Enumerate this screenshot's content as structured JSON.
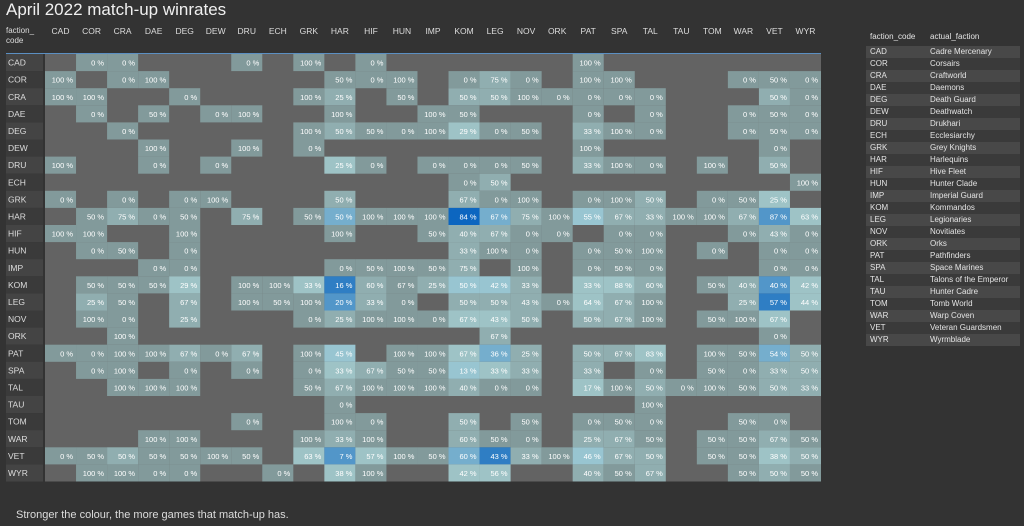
{
  "page": {
    "title": "April 2022 match-up winrates",
    "note": "Stronger the colour, the more games that match-up has."
  },
  "colors": {
    "background": "#333333",
    "empty_cell": "#636363",
    "scale_low": "#748585",
    "scale_mid": "#a6cfd3",
    "scale_high": "#0c66c0",
    "text": "#e4e4e4"
  },
  "chart_data": {
    "type": "heatmap",
    "title": "April 2022 match-up winrates",
    "corner_label": [
      "faction_",
      "code"
    ],
    "columns": [
      "CAD",
      "COR",
      "CRA",
      "DAE",
      "DEG",
      "DEW",
      "DRU",
      "ECH",
      "GRK",
      "HAR",
      "HIF",
      "HUN",
      "IMP",
      "KOM",
      "LEG",
      "NOV",
      "ORK",
      "PAT",
      "SPA",
      "TAL",
      "TAU",
      "TOM",
      "WAR",
      "VET",
      "WYR"
    ],
    "rows": [
      "CAD",
      "COR",
      "CRA",
      "DAE",
      "DEG",
      "DEW",
      "DRU",
      "ECH",
      "GRK",
      "HAR",
      "HIF",
      "HUN",
      "IMP",
      "KOM",
      "LEG",
      "NOV",
      "ORK",
      "PAT",
      "SPA",
      "TAL",
      "TAU",
      "TOM",
      "WAR",
      "VET",
      "WYR"
    ],
    "value_unit": "%",
    "values": [
      [
        null,
        0,
        0,
        null,
        null,
        null,
        0,
        null,
        100,
        null,
        0,
        null,
        null,
        null,
        null,
        null,
        null,
        100,
        null,
        null,
        null,
        null,
        null,
        null,
        null
      ],
      [
        100,
        null,
        0,
        100,
        null,
        null,
        null,
        null,
        null,
        50,
        0,
        100,
        null,
        0,
        75,
        0,
        null,
        100,
        100,
        null,
        null,
        null,
        0,
        50,
        0
      ],
      [
        100,
        100,
        null,
        null,
        0,
        null,
        null,
        null,
        100,
        25,
        null,
        50,
        null,
        50,
        50,
        100,
        0,
        0,
        0,
        0,
        null,
        null,
        null,
        50,
        0
      ],
      [
        null,
        0,
        null,
        50,
        null,
        0,
        100,
        null,
        null,
        100,
        null,
        null,
        100,
        50,
        null,
        null,
        null,
        0,
        null,
        0,
        null,
        null,
        0,
        50,
        0
      ],
      [
        null,
        null,
        0,
        null,
        null,
        null,
        null,
        null,
        100,
        50,
        50,
        0,
        100,
        29,
        0,
        50,
        null,
        33,
        100,
        0,
        null,
        null,
        0,
        50,
        0
      ],
      [
        null,
        null,
        null,
        100,
        null,
        null,
        100,
        null,
        0,
        null,
        null,
        null,
        null,
        null,
        null,
        null,
        null,
        100,
        null,
        null,
        null,
        null,
        null,
        0,
        null
      ],
      [
        100,
        null,
        null,
        0,
        null,
        0,
        null,
        null,
        null,
        25,
        0,
        null,
        0,
        0,
        0,
        50,
        null,
        33,
        100,
        0,
        null,
        100,
        null,
        50,
        null
      ],
      [
        null,
        null,
        null,
        null,
        null,
        null,
        null,
        null,
        null,
        null,
        null,
        null,
        null,
        0,
        50,
        null,
        null,
        null,
        null,
        null,
        null,
        null,
        null,
        null,
        100
      ],
      [
        0,
        null,
        0,
        null,
        0,
        100,
        null,
        null,
        null,
        50,
        null,
        null,
        null,
        67,
        0,
        100,
        null,
        0,
        100,
        50,
        null,
        0,
        50,
        25,
        null
      ],
      [
        null,
        50,
        75,
        0,
        50,
        null,
        75,
        null,
        50,
        50,
        100,
        100,
        100,
        84,
        67,
        75,
        100,
        55,
        67,
        33,
        100,
        100,
        67,
        87,
        63
      ],
      [
        100,
        100,
        null,
        null,
        100,
        null,
        null,
        null,
        null,
        100,
        null,
        null,
        50,
        40,
        67,
        0,
        0,
        null,
        0,
        0,
        null,
        null,
        0,
        43,
        0
      ],
      [
        null,
        0,
        50,
        null,
        0,
        null,
        null,
        null,
        null,
        null,
        null,
        null,
        null,
        33,
        100,
        0,
        null,
        0,
        50,
        100,
        null,
        0,
        null,
        0,
        0
      ],
      [
        null,
        null,
        null,
        0,
        0,
        null,
        null,
        null,
        null,
        0,
        50,
        100,
        50,
        75,
        null,
        100,
        null,
        0,
        50,
        0,
        null,
        null,
        null,
        0,
        0
      ],
      [
        null,
        50,
        50,
        50,
        29,
        null,
        100,
        100,
        33,
        16,
        60,
        67,
        25,
        50,
        42,
        33,
        null,
        33,
        88,
        60,
        null,
        50,
        40,
        40,
        42
      ],
      [
        null,
        25,
        50,
        null,
        67,
        null,
        100,
        50,
        100,
        20,
        33,
        0,
        null,
        50,
        50,
        43,
        0,
        64,
        67,
        100,
        null,
        null,
        25,
        57,
        44
      ],
      [
        null,
        100,
        0,
        null,
        25,
        null,
        null,
        null,
        0,
        25,
        100,
        100,
        0,
        67,
        43,
        50,
        null,
        50,
        67,
        100,
        null,
        50,
        100,
        67,
        null
      ],
      [
        null,
        null,
        100,
        null,
        null,
        null,
        null,
        null,
        null,
        null,
        null,
        null,
        null,
        null,
        67,
        null,
        null,
        null,
        null,
        null,
        null,
        null,
        null,
        0,
        null
      ],
      [
        0,
        0,
        100,
        100,
        67,
        0,
        67,
        null,
        100,
        45,
        null,
        100,
        100,
        67,
        36,
        25,
        null,
        50,
        67,
        83,
        null,
        100,
        50,
        54,
        50
      ],
      [
        null,
        0,
        100,
        null,
        0,
        null,
        0,
        null,
        0,
        33,
        67,
        50,
        50,
        13,
        33,
        33,
        null,
        33,
        null,
        0,
        null,
        50,
        0,
        33,
        50
      ],
      [
        null,
        null,
        100,
        100,
        100,
        null,
        null,
        null,
        50,
        67,
        100,
        100,
        100,
        40,
        0,
        0,
        null,
        17,
        100,
        50,
        0,
        100,
        50,
        50,
        33
      ],
      [
        null,
        null,
        null,
        null,
        null,
        null,
        null,
        null,
        null,
        0,
        null,
        null,
        null,
        null,
        null,
        null,
        null,
        null,
        null,
        100,
        null,
        null,
        null,
        null,
        null
      ],
      [
        null,
        null,
        null,
        null,
        null,
        null,
        0,
        null,
        null,
        100,
        0,
        null,
        null,
        50,
        null,
        50,
        null,
        0,
        50,
        0,
        null,
        null,
        50,
        0,
        null
      ],
      [
        null,
        null,
        null,
        100,
        100,
        null,
        null,
        null,
        100,
        33,
        100,
        null,
        null,
        60,
        50,
        0,
        null,
        25,
        67,
        50,
        null,
        50,
        50,
        67,
        50
      ],
      [
        0,
        50,
        50,
        50,
        50,
        100,
        50,
        null,
        63,
        7,
        57,
        100,
        50,
        60,
        43,
        33,
        100,
        46,
        67,
        50,
        null,
        50,
        50,
        38,
        50
      ],
      [
        null,
        100,
        100,
        0,
        0,
        null,
        null,
        0,
        null,
        38,
        100,
        null,
        null,
        42,
        56,
        null,
        null,
        40,
        50,
        67,
        null,
        null,
        50,
        50,
        50
      ]
    ],
    "weights": [
      [
        0,
        1,
        1,
        0,
        0,
        0,
        1,
        0,
        1,
        0,
        1,
        0,
        0,
        0,
        0,
        0,
        0,
        1,
        0,
        0,
        0,
        0,
        0,
        0,
        0
      ],
      [
        1,
        0,
        1,
        1,
        0,
        0,
        0,
        0,
        0,
        1,
        1,
        1,
        0,
        1,
        2,
        1,
        0,
        1,
        1,
        0,
        0,
        0,
        1,
        1,
        1
      ],
      [
        1,
        1,
        0,
        0,
        1,
        0,
        0,
        0,
        1,
        2,
        0,
        1,
        0,
        2,
        2,
        1,
        1,
        1,
        1,
        1,
        0,
        0,
        0,
        2,
        1
      ],
      [
        0,
        1,
        0,
        1,
        0,
        1,
        1,
        0,
        0,
        1,
        0,
        0,
        1,
        1,
        0,
        0,
        0,
        1,
        0,
        1,
        0,
        0,
        1,
        1,
        1
      ],
      [
        0,
        0,
        1,
        0,
        0,
        0,
        0,
        0,
        1,
        2,
        1,
        1,
        1,
        3,
        1,
        1,
        0,
        2,
        1,
        1,
        0,
        0,
        1,
        1,
        1
      ],
      [
        0,
        0,
        0,
        1,
        0,
        0,
        1,
        0,
        1,
        0,
        0,
        0,
        0,
        0,
        0,
        0,
        0,
        1,
        0,
        0,
        0,
        0,
        0,
        1,
        0
      ],
      [
        1,
        0,
        0,
        1,
        0,
        1,
        0,
        0,
        0,
        3,
        1,
        0,
        1,
        1,
        1,
        1,
        0,
        2,
        1,
        1,
        0,
        1,
        0,
        2,
        0
      ],
      [
        0,
        0,
        0,
        0,
        0,
        0,
        0,
        0,
        0,
        0,
        0,
        0,
        0,
        1,
        2,
        0,
        0,
        0,
        0,
        0,
        0,
        0,
        0,
        0,
        1
      ],
      [
        1,
        0,
        1,
        0,
        1,
        1,
        0,
        0,
        0,
        2,
        0,
        0,
        0,
        2,
        1,
        1,
        0,
        1,
        1,
        2,
        0,
        1,
        1,
        3,
        0
      ],
      [
        0,
        1,
        2,
        1,
        1,
        0,
        2,
        0,
        1,
        5,
        1,
        1,
        1,
        8,
        5,
        2,
        1,
        4,
        2,
        2,
        1,
        1,
        2,
        6,
        3
      ],
      [
        1,
        1,
        0,
        0,
        1,
        0,
        0,
        0,
        0,
        1,
        0,
        0,
        1,
        2,
        2,
        1,
        1,
        0,
        1,
        1,
        0,
        0,
        1,
        2,
        1
      ],
      [
        0,
        1,
        1,
        0,
        1,
        0,
        0,
        0,
        0,
        0,
        0,
        0,
        0,
        2,
        1,
        1,
        0,
        1,
        1,
        1,
        0,
        1,
        0,
        1,
        1
      ],
      [
        0,
        0,
        0,
        1,
        1,
        0,
        0,
        0,
        0,
        1,
        1,
        1,
        1,
        2,
        0,
        1,
        0,
        1,
        1,
        1,
        0,
        0,
        0,
        1,
        1
      ],
      [
        0,
        1,
        1,
        1,
        3,
        0,
        1,
        1,
        3,
        7,
        2,
        1,
        2,
        4,
        4,
        2,
        0,
        3,
        3,
        2,
        0,
        1,
        2,
        6,
        3
      ],
      [
        0,
        2,
        1,
        0,
        2,
        0,
        1,
        1,
        1,
        6,
        2,
        1,
        0,
        2,
        2,
        2,
        1,
        3,
        2,
        1,
        0,
        0,
        2,
        7,
        3
      ],
      [
        0,
        1,
        1,
        0,
        2,
        0,
        0,
        0,
        1,
        2,
        1,
        1,
        1,
        3,
        3,
        2,
        0,
        2,
        2,
        1,
        0,
        1,
        1,
        3,
        0
      ],
      [
        0,
        0,
        1,
        0,
        0,
        0,
        0,
        0,
        0,
        0,
        0,
        0,
        0,
        0,
        2,
        0,
        0,
        0,
        0,
        0,
        0,
        0,
        0,
        1,
        0
      ],
      [
        1,
        1,
        1,
        1,
        2,
        1,
        2,
        0,
        1,
        4,
        0,
        1,
        1,
        3,
        5,
        2,
        0,
        2,
        2,
        3,
        0,
        1,
        1,
        5,
        2
      ],
      [
        0,
        1,
        1,
        0,
        1,
        0,
        1,
        0,
        1,
        3,
        2,
        1,
        1,
        4,
        3,
        2,
        0,
        2,
        0,
        1,
        0,
        1,
        1,
        2,
        2
      ],
      [
        0,
        0,
        1,
        1,
        1,
        0,
        0,
        0,
        1,
        2,
        1,
        1,
        1,
        2,
        1,
        1,
        0,
        3,
        1,
        2,
        1,
        1,
        1,
        2,
        2
      ],
      [
        0,
        0,
        0,
        0,
        0,
        0,
        0,
        0,
        0,
        1,
        0,
        0,
        0,
        0,
        0,
        0,
        0,
        0,
        0,
        1,
        0,
        0,
        0,
        0,
        0
      ],
      [
        0,
        0,
        0,
        0,
        0,
        0,
        1,
        0,
        0,
        1,
        1,
        0,
        0,
        2,
        0,
        1,
        0,
        1,
        1,
        1,
        0,
        0,
        1,
        1,
        0
      ],
      [
        0,
        0,
        0,
        1,
        1,
        0,
        0,
        0,
        1,
        2,
        1,
        0,
        0,
        2,
        1,
        1,
        0,
        2,
        2,
        1,
        0,
        1,
        1,
        2,
        1
      ],
      [
        1,
        1,
        2,
        1,
        1,
        1,
        1,
        0,
        3,
        6,
        3,
        1,
        1,
        5,
        7,
        2,
        1,
        4,
        2,
        2,
        0,
        1,
        1,
        3,
        2
      ],
      [
        0,
        1,
        1,
        1,
        1,
        0,
        0,
        1,
        0,
        3,
        1,
        0,
        0,
        3,
        3,
        0,
        0,
        2,
        1,
        2,
        0,
        0,
        1,
        2,
        1
      ]
    ]
  },
  "legend_table": {
    "headers": [
      "faction_code",
      "actual_faction"
    ],
    "rows": [
      [
        "CAD",
        "Cadre Mercenary"
      ],
      [
        "COR",
        "Corsairs"
      ],
      [
        "CRA",
        "Craftworld"
      ],
      [
        "DAE",
        "Daemons"
      ],
      [
        "DEG",
        "Death Guard"
      ],
      [
        "DEW",
        "Deathwatch"
      ],
      [
        "DRU",
        "Drukhari"
      ],
      [
        "ECH",
        "Ecclesiarchy"
      ],
      [
        "GRK",
        "Grey Knights"
      ],
      [
        "HAR",
        "Harlequins"
      ],
      [
        "HIF",
        "Hive Fleet"
      ],
      [
        "HUN",
        "Hunter Clade"
      ],
      [
        "IMP",
        "Imperial Guard"
      ],
      [
        "KOM",
        "Kommandos"
      ],
      [
        "LEG",
        "Legionaries"
      ],
      [
        "NOV",
        "Novitiates"
      ],
      [
        "ORK",
        "Orks"
      ],
      [
        "PAT",
        "Pathfinders"
      ],
      [
        "SPA",
        "Space Marines"
      ],
      [
        "TAL",
        "Talons of the Emperor"
      ],
      [
        "TAU",
        "Hunter Cadre"
      ],
      [
        "TOM",
        "Tomb World"
      ],
      [
        "WAR",
        "Warp Coven"
      ],
      [
        "VET",
        "Veteran Guardsmen"
      ],
      [
        "WYR",
        "Wyrmblade"
      ]
    ]
  }
}
